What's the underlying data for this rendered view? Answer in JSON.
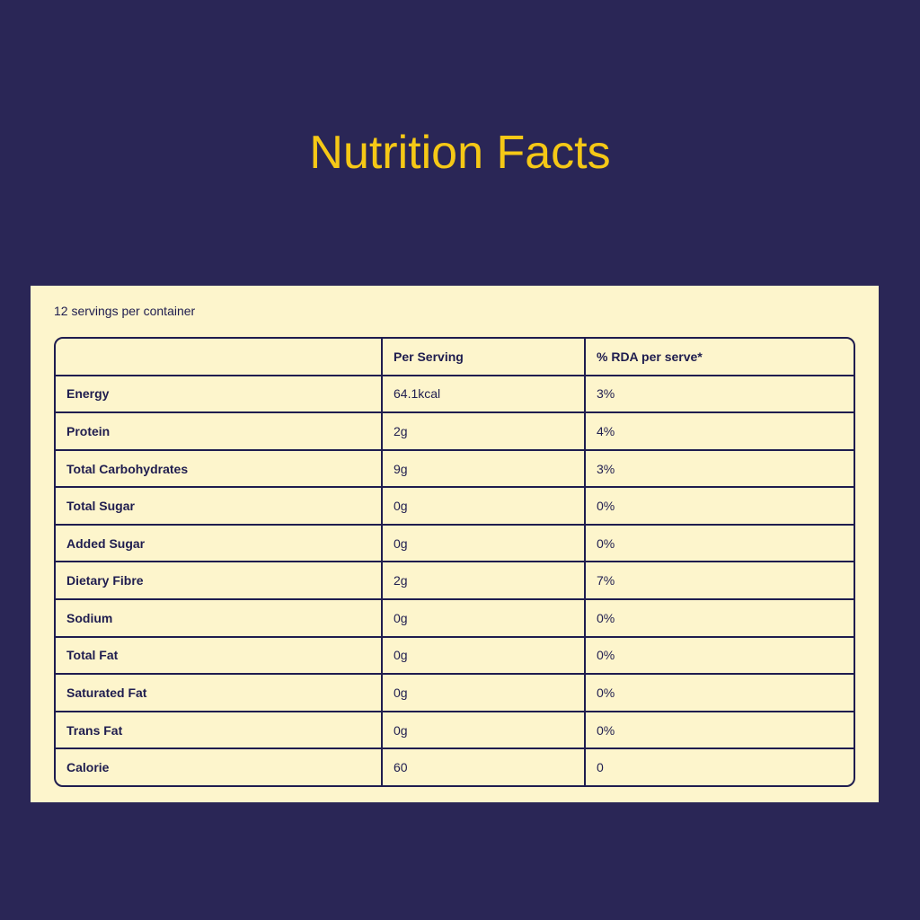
{
  "header": {
    "title": "Nutrition Facts"
  },
  "card": {
    "note": "12 servings per container"
  },
  "table": {
    "columns": [
      "Per Serving",
      "% RDA per serve*"
    ],
    "rows": [
      [
        "Energy",
        "64.1kcal",
        "3%"
      ],
      [
        "Protein",
        "2g",
        "4%"
      ],
      [
        "Total Carbohydrates",
        "9g",
        "3%"
      ],
      [
        "Total Sugar",
        "0g",
        "0%"
      ],
      [
        "Added Sugar",
        "0g",
        "0%"
      ],
      [
        "Dietary Fibre",
        "2g",
        "7%"
      ],
      [
        "Sodium",
        "0g",
        "0%"
      ],
      [
        "Total Fat",
        "0g",
        "0%"
      ],
      [
        "Saturated Fat",
        "0g",
        "0%"
      ],
      [
        "Trans Fat",
        "0g",
        "0%"
      ],
      [
        "Calorie",
        "60",
        "0"
      ]
    ]
  }
}
